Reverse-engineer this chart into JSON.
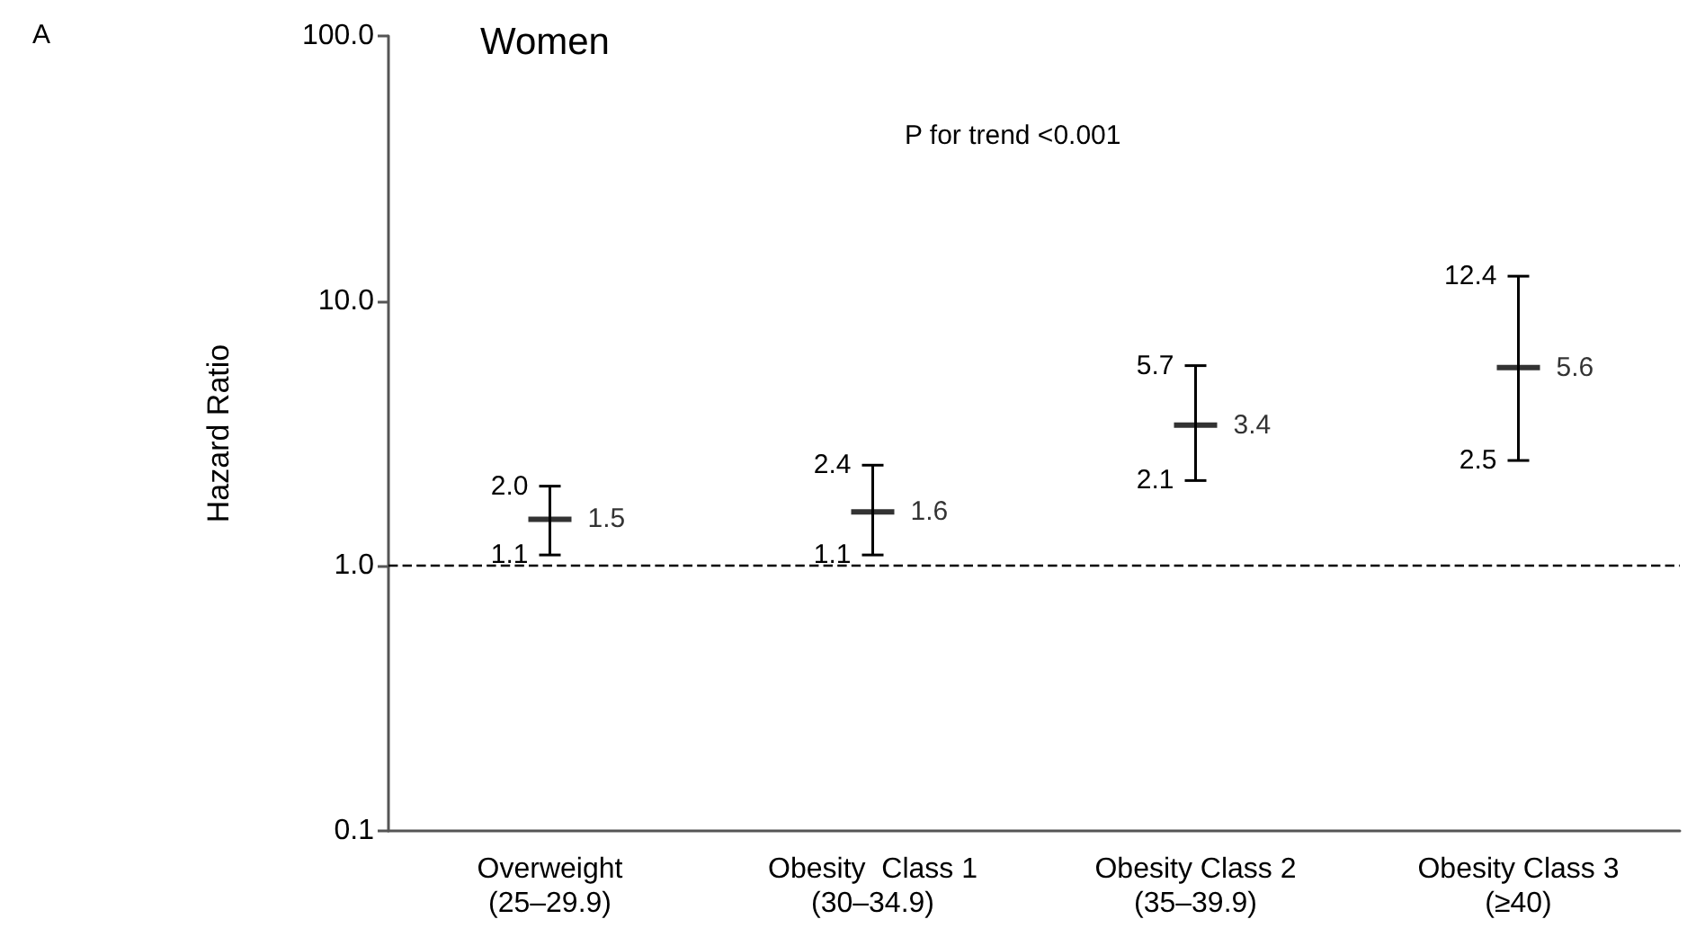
{
  "chart_data": {
    "type": "scatter",
    "title": "Women",
    "ylabel": "Hazard Ratio",
    "annotations": [
      "A",
      "P for trend <0.001",
      {
        "text": "2.0",
        "x": "Overweight\n(25–29.9)",
        "y": 2.0
      },
      {
        "text": "1.1",
        "x": "Overweight\n(25–29.9)",
        "y": 1.1
      },
      {
        "text": "2.4",
        "x": "Obesity  Class 1\n(30–34.9)",
        "y": 2.4
      },
      {
        "text": "1.1",
        "x": "Obesity  Class 1\n(30–34.9)",
        "y": 1.1
      },
      {
        "text": "5.7",
        "x": "Obesity Class 2\n(35–39.9)",
        "y": 5.7
      },
      {
        "text": "2.1",
        "x": "Obesity Class 2\n(35–39.9)",
        "y": 2.1
      },
      {
        "text": "12.4",
        "x": "Obesity Class 3\n(≥40)",
        "y": 12.4
      },
      {
        "text": "2.5",
        "x": "Obesity Class 3\n(≥40)",
        "y": 2.5
      }
    ],
    "categories": [
      "Overweight\n(25–29.9)",
      "Obesity  Class 1\n(30–34.9)",
      "Obesity Class 2\n(35–39.9)",
      "Obesity Class 3\n(≥40)"
    ],
    "values": [
      1.5,
      1.6,
      3.4,
      5.6
    ],
    "errors": [
      [
        1.1,
        2.0
      ],
      [
        1.1,
        2.4
      ],
      [
        2.1,
        5.7
      ],
      [
        2.5,
        12.4
      ]
    ],
    "color": "#000000",
    "marker": "cross",
    "log": "y",
    "ylim": [
      0.1,
      100
    ],
    "yticks": [
      0.1,
      {
        "value": 1,
        "label": "1.0"
      },
      {
        "value": 10,
        "label": "10.0"
      },
      {
        "value": 100,
        "label": "100.0"
      }
    ],
    "ref_lines": [
      {
        "axis": "y",
        "value": 1,
        "color": "#000000",
        "line_style": "dashed"
      }
    ],
    "data_labels": true,
    "grid": false
  }
}
